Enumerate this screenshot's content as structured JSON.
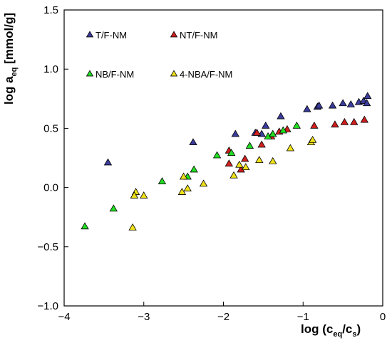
{
  "chart_data": {
    "type": "scatter",
    "title": "",
    "xlabel": {
      "prefix": "log (c",
      "sub1": "eq",
      "mid": "/c",
      "sub2": "s",
      "suffix": ")"
    },
    "ylabel": {
      "prefix": "log a",
      "sub": "eq",
      "suffix": " [mmol/g]"
    },
    "xlim": [
      -4,
      0
    ],
    "ylim": [
      -1.0,
      1.5
    ],
    "xticks": [
      -4,
      -3,
      -2,
      -1,
      0
    ],
    "xtick_labels": [
      "−4",
      "−3",
      "−2",
      "−1",
      "0"
    ],
    "yticks": [
      -1.0,
      -0.5,
      0.0,
      0.5,
      1.0,
      1.5
    ],
    "ytick_labels": [
      "−1.0",
      "−0.5",
      "0.0",
      "0.5",
      "1.0",
      "1.5"
    ],
    "grid": false,
    "legend_position": "top-left",
    "series": [
      {
        "name": "T/F-NM",
        "color": "#3b3c9b",
        "points": [
          [
            -3.45,
            0.21
          ],
          [
            -2.38,
            0.38
          ],
          [
            -1.85,
            0.45
          ],
          [
            -1.6,
            0.46
          ],
          [
            -1.47,
            0.52
          ],
          [
            -1.52,
            0.45
          ],
          [
            -1.28,
            0.6
          ],
          [
            -0.95,
            0.66
          ],
          [
            -0.82,
            0.68
          ],
          [
            -0.8,
            0.69
          ],
          [
            -0.63,
            0.69
          ],
          [
            -0.5,
            0.71
          ],
          [
            -0.4,
            0.7
          ],
          [
            -0.3,
            0.72
          ],
          [
            -0.24,
            0.73
          ],
          [
            -0.2,
            0.71
          ],
          [
            -0.19,
            0.77
          ]
        ]
      },
      {
        "name": "NT/F-NM",
        "color": "#d01f1f",
        "points": [
          [
            -1.93,
            0.31
          ],
          [
            -1.93,
            0.2
          ],
          [
            -1.78,
            0.15
          ],
          [
            -1.73,
            0.24
          ],
          [
            -1.58,
            0.46
          ],
          [
            -1.52,
            0.36
          ],
          [
            -1.4,
            0.43
          ],
          [
            -1.3,
            0.47
          ],
          [
            -1.2,
            0.49
          ],
          [
            -0.86,
            0.52
          ],
          [
            -0.6,
            0.53
          ],
          [
            -0.48,
            0.55
          ],
          [
            -0.36,
            0.55
          ],
          [
            -0.23,
            0.57
          ]
        ]
      },
      {
        "name": "NB/F-NM",
        "color": "#22dd22",
        "points": [
          [
            -3.74,
            -0.33
          ],
          [
            -3.38,
            -0.18
          ],
          [
            -3.12,
            -0.07
          ],
          [
            -2.77,
            0.05
          ],
          [
            -2.45,
            0.09
          ],
          [
            -2.37,
            0.15
          ],
          [
            -2.08,
            0.27
          ],
          [
            -1.9,
            0.29
          ],
          [
            -1.67,
            0.35
          ],
          [
            -1.44,
            0.43
          ],
          [
            -1.38,
            0.45
          ],
          [
            -1.25,
            0.48
          ],
          [
            -1.08,
            0.52
          ]
        ]
      },
      {
        "name": "4-NBA/F-NM",
        "color": "#f0e21a",
        "points": [
          [
            -3.14,
            -0.34
          ],
          [
            -3.1,
            -0.04
          ],
          [
            -3.12,
            -0.07
          ],
          [
            -3.0,
            -0.07
          ],
          [
            -2.52,
            -0.04
          ],
          [
            -2.5,
            0.09
          ],
          [
            -2.45,
            -0.01
          ],
          [
            -2.25,
            0.03
          ],
          [
            -1.87,
            0.1
          ],
          [
            -1.8,
            0.19
          ],
          [
            -1.72,
            0.17
          ],
          [
            -1.55,
            0.23
          ],
          [
            -1.38,
            0.22
          ],
          [
            -1.16,
            0.33
          ],
          [
            -0.9,
            0.38
          ],
          [
            -0.88,
            0.4
          ]
        ]
      }
    ]
  }
}
